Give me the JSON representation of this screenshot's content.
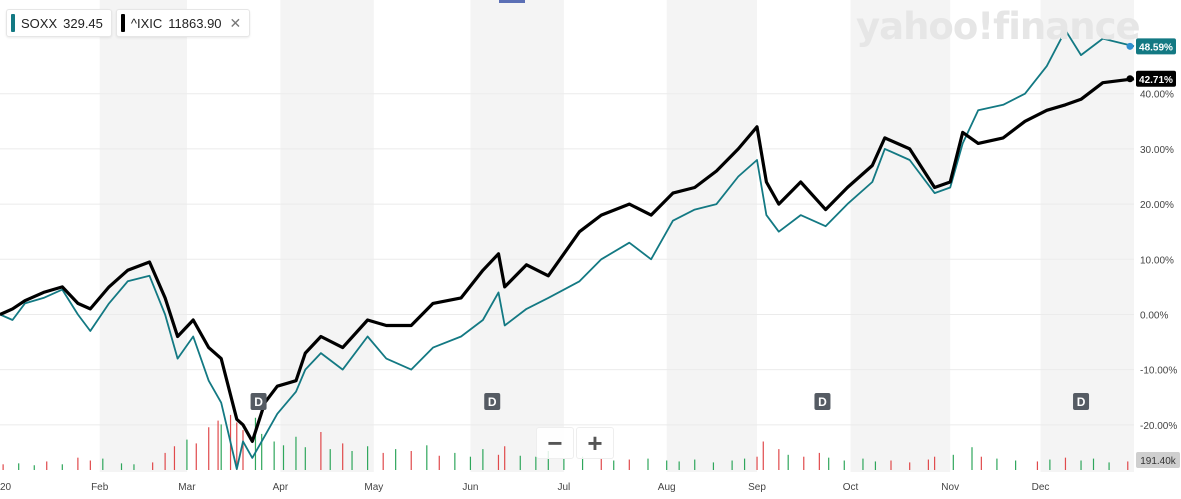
{
  "legend": [
    {
      "symbol": "SOXX",
      "value": "329.45",
      "color": "#137983"
    },
    {
      "symbol": "^IXIC",
      "value": "11863.90",
      "color": "#000000",
      "close": "✕"
    }
  ],
  "watermark": "yahoo!finance",
  "zoom": {
    "minus": "−",
    "plus": "+"
  },
  "price_labels": [
    {
      "text": "48.59%",
      "color": "#137983",
      "value": 48.59
    },
    {
      "text": "42.71%",
      "color": "#000000",
      "value": 42.71
    }
  ],
  "volume_label": "191.40k",
  "chart_data": {
    "type": "line",
    "x_start": "2020-01-02",
    "x_end": "2020-12-31",
    "ylim": [
      -30,
      53
    ],
    "yticks": [
      40,
      30,
      20,
      10,
      0,
      -10,
      -20
    ],
    "ytick_labels": [
      "40.00%",
      "30.00%",
      "20.00%",
      "10.00%",
      "0.00%",
      "-10.00%",
      "-20.00%"
    ],
    "xtick_labels": [
      "20",
      "Feb",
      "Mar",
      "Apr",
      "May",
      "Jun",
      "Jul",
      "Aug",
      "Sep",
      "Oct",
      "Nov",
      "Dec"
    ],
    "xtick_dates": [
      "2020-01-02",
      "2020-02-03",
      "2020-03-02",
      "2020-04-01",
      "2020-05-01",
      "2020-06-01",
      "2020-07-01",
      "2020-08-03",
      "2020-09-01",
      "2020-10-01",
      "2020-11-02",
      "2020-12-01"
    ],
    "dividend_markers": {
      "label": "D",
      "dates": [
        "2020-03-25",
        "2020-06-08",
        "2020-09-22",
        "2020-12-14"
      ]
    },
    "series": [
      {
        "name": "SOXX",
        "color": "#137983",
        "points": [
          [
            "2020-01-02",
            0
          ],
          [
            "2020-01-06",
            -1
          ],
          [
            "2020-01-10",
            2
          ],
          [
            "2020-01-16",
            3
          ],
          [
            "2020-01-22",
            4.5
          ],
          [
            "2020-01-27",
            0
          ],
          [
            "2020-01-31",
            -3
          ],
          [
            "2020-02-06",
            2
          ],
          [
            "2020-02-12",
            6
          ],
          [
            "2020-02-19",
            7
          ],
          [
            "2020-02-24",
            0
          ],
          [
            "2020-02-28",
            -8
          ],
          [
            "2020-03-04",
            -4
          ],
          [
            "2020-03-09",
            -12
          ],
          [
            "2020-03-13",
            -16
          ],
          [
            "2020-03-18",
            -28
          ],
          [
            "2020-03-20",
            -23
          ],
          [
            "2020-03-23",
            -26
          ],
          [
            "2020-03-27",
            -22
          ],
          [
            "2020-03-31",
            -18
          ],
          [
            "2020-04-06",
            -14
          ],
          [
            "2020-04-09",
            -10
          ],
          [
            "2020-04-14",
            -7
          ],
          [
            "2020-04-21",
            -10
          ],
          [
            "2020-04-29",
            -4
          ],
          [
            "2020-05-05",
            -8
          ],
          [
            "2020-05-13",
            -10
          ],
          [
            "2020-05-20",
            -6
          ],
          [
            "2020-05-29",
            -4
          ],
          [
            "2020-06-05",
            -1
          ],
          [
            "2020-06-10",
            4
          ],
          [
            "2020-06-12",
            -2
          ],
          [
            "2020-06-19",
            1
          ],
          [
            "2020-06-26",
            3
          ],
          [
            "2020-07-06",
            6
          ],
          [
            "2020-07-13",
            10
          ],
          [
            "2020-07-22",
            13
          ],
          [
            "2020-07-29",
            10
          ],
          [
            "2020-08-05",
            17
          ],
          [
            "2020-08-12",
            19
          ],
          [
            "2020-08-19",
            20
          ],
          [
            "2020-08-26",
            25
          ],
          [
            "2020-09-01",
            28
          ],
          [
            "2020-09-04",
            18
          ],
          [
            "2020-09-08",
            15
          ],
          [
            "2020-09-15",
            18
          ],
          [
            "2020-09-23",
            16
          ],
          [
            "2020-09-30",
            20
          ],
          [
            "2020-10-08",
            24
          ],
          [
            "2020-10-12",
            30
          ],
          [
            "2020-10-20",
            28
          ],
          [
            "2020-10-28",
            22
          ],
          [
            "2020-11-02",
            23
          ],
          [
            "2020-11-06",
            31
          ],
          [
            "2020-11-11",
            37
          ],
          [
            "2020-11-19",
            38
          ],
          [
            "2020-11-26",
            40
          ],
          [
            "2020-12-03",
            45
          ],
          [
            "2020-12-09",
            51.5
          ],
          [
            "2020-12-14",
            47
          ],
          [
            "2020-12-21",
            50
          ],
          [
            "2020-12-31",
            48.59
          ]
        ]
      },
      {
        "name": "^IXIC",
        "color": "#000000",
        "points": [
          [
            "2020-01-02",
            0
          ],
          [
            "2020-01-06",
            1
          ],
          [
            "2020-01-10",
            2.5
          ],
          [
            "2020-01-16",
            4
          ],
          [
            "2020-01-22",
            5
          ],
          [
            "2020-01-27",
            2
          ],
          [
            "2020-01-31",
            1
          ],
          [
            "2020-02-06",
            5
          ],
          [
            "2020-02-12",
            8
          ],
          [
            "2020-02-19",
            9.5
          ],
          [
            "2020-02-24",
            3
          ],
          [
            "2020-02-28",
            -4
          ],
          [
            "2020-03-04",
            -1
          ],
          [
            "2020-03-09",
            -6
          ],
          [
            "2020-03-13",
            -8
          ],
          [
            "2020-03-18",
            -19
          ],
          [
            "2020-03-20",
            -20
          ],
          [
            "2020-03-23",
            -23
          ],
          [
            "2020-03-27",
            -16
          ],
          [
            "2020-03-31",
            -13
          ],
          [
            "2020-04-06",
            -12
          ],
          [
            "2020-04-09",
            -7
          ],
          [
            "2020-04-14",
            -4
          ],
          [
            "2020-04-21",
            -6
          ],
          [
            "2020-04-29",
            -1
          ],
          [
            "2020-05-05",
            -2
          ],
          [
            "2020-05-13",
            -2
          ],
          [
            "2020-05-20",
            2
          ],
          [
            "2020-05-29",
            3
          ],
          [
            "2020-06-05",
            8
          ],
          [
            "2020-06-10",
            11
          ],
          [
            "2020-06-12",
            5
          ],
          [
            "2020-06-19",
            9
          ],
          [
            "2020-06-26",
            7
          ],
          [
            "2020-07-06",
            15
          ],
          [
            "2020-07-13",
            18
          ],
          [
            "2020-07-22",
            20
          ],
          [
            "2020-07-29",
            18
          ],
          [
            "2020-08-05",
            22
          ],
          [
            "2020-08-12",
            23
          ],
          [
            "2020-08-19",
            26
          ],
          [
            "2020-08-26",
            30
          ],
          [
            "2020-09-01",
            34
          ],
          [
            "2020-09-04",
            24
          ],
          [
            "2020-09-08",
            20
          ],
          [
            "2020-09-15",
            24
          ],
          [
            "2020-09-23",
            19
          ],
          [
            "2020-09-30",
            23
          ],
          [
            "2020-10-08",
            27
          ],
          [
            "2020-10-12",
            32
          ],
          [
            "2020-10-20",
            30
          ],
          [
            "2020-10-28",
            23
          ],
          [
            "2020-11-02",
            24
          ],
          [
            "2020-11-06",
            33
          ],
          [
            "2020-11-11",
            31
          ],
          [
            "2020-11-19",
            32
          ],
          [
            "2020-11-26",
            35
          ],
          [
            "2020-12-03",
            37
          ],
          [
            "2020-12-09",
            38
          ],
          [
            "2020-12-14",
            39
          ],
          [
            "2020-12-21",
            42
          ],
          [
            "2020-12-31",
            42.71
          ]
        ]
      }
    ],
    "volume": {
      "ylim": [
        0,
        100
      ],
      "bars": [
        {
          "date": "2020-01-03",
          "value": 6,
          "up": false
        },
        {
          "date": "2020-01-08",
          "value": 7,
          "up": true
        },
        {
          "date": "2020-01-13",
          "value": 5,
          "up": true
        },
        {
          "date": "2020-01-17",
          "value": 9,
          "up": false
        },
        {
          "date": "2020-01-22",
          "value": 6,
          "up": true
        },
        {
          "date": "2020-01-27",
          "value": 13,
          "up": false
        },
        {
          "date": "2020-01-31",
          "value": 10,
          "up": false
        },
        {
          "date": "2020-02-04",
          "value": 12,
          "up": true
        },
        {
          "date": "2020-02-10",
          "value": 7,
          "up": true
        },
        {
          "date": "2020-02-14",
          "value": 6,
          "up": true
        },
        {
          "date": "2020-02-20",
          "value": 8,
          "up": false
        },
        {
          "date": "2020-02-24",
          "value": 18,
          "up": false
        },
        {
          "date": "2020-02-27",
          "value": 25,
          "up": false
        },
        {
          "date": "2020-03-02",
          "value": 32,
          "up": true
        },
        {
          "date": "2020-03-05",
          "value": 28,
          "up": false
        },
        {
          "date": "2020-03-09",
          "value": 45,
          "up": false
        },
        {
          "date": "2020-03-12",
          "value": 52,
          "up": false
        },
        {
          "date": "2020-03-13",
          "value": 48,
          "up": true
        },
        {
          "date": "2020-03-16",
          "value": 58,
          "up": false
        },
        {
          "date": "2020-03-18",
          "value": 50,
          "up": false
        },
        {
          "date": "2020-03-20",
          "value": 42,
          "up": false
        },
        {
          "date": "2020-03-24",
          "value": 55,
          "up": true
        },
        {
          "date": "2020-03-26",
          "value": 38,
          "up": true
        },
        {
          "date": "2020-03-30",
          "value": 30,
          "up": true
        },
        {
          "date": "2020-04-02",
          "value": 26,
          "up": true
        },
        {
          "date": "2020-04-06",
          "value": 35,
          "up": true
        },
        {
          "date": "2020-04-09",
          "value": 24,
          "up": true
        },
        {
          "date": "2020-04-14",
          "value": 40,
          "up": false
        },
        {
          "date": "2020-04-17",
          "value": 22,
          "up": true
        },
        {
          "date": "2020-04-21",
          "value": 28,
          "up": false
        },
        {
          "date": "2020-04-24",
          "value": 20,
          "up": true
        },
        {
          "date": "2020-04-29",
          "value": 25,
          "up": true
        },
        {
          "date": "2020-05-04",
          "value": 18,
          "up": false
        },
        {
          "date": "2020-05-08",
          "value": 22,
          "up": true
        },
        {
          "date": "2020-05-13",
          "value": 20,
          "up": false
        },
        {
          "date": "2020-05-18",
          "value": 26,
          "up": true
        },
        {
          "date": "2020-05-22",
          "value": 15,
          "up": false
        },
        {
          "date": "2020-05-27",
          "value": 18,
          "up": true
        },
        {
          "date": "2020-06-01",
          "value": 14,
          "up": true
        },
        {
          "date": "2020-06-05",
          "value": 22,
          "up": true
        },
        {
          "date": "2020-06-10",
          "value": 16,
          "up": false
        },
        {
          "date": "2020-06-12",
          "value": 25,
          "up": false
        },
        {
          "date": "2020-06-17",
          "value": 15,
          "up": true
        },
        {
          "date": "2020-06-22",
          "value": 14,
          "up": true
        },
        {
          "date": "2020-06-26",
          "value": 20,
          "up": true
        },
        {
          "date": "2020-07-01",
          "value": 12,
          "up": true
        },
        {
          "date": "2020-07-07",
          "value": 14,
          "up": true
        },
        {
          "date": "2020-07-13",
          "value": 12,
          "up": false
        },
        {
          "date": "2020-07-17",
          "value": 10,
          "up": true
        },
        {
          "date": "2020-07-22",
          "value": 11,
          "up": false
        },
        {
          "date": "2020-07-28",
          "value": 12,
          "up": true
        },
        {
          "date": "2020-08-03",
          "value": 10,
          "up": true
        },
        {
          "date": "2020-08-07",
          "value": 9,
          "up": true
        },
        {
          "date": "2020-08-12",
          "value": 11,
          "up": true
        },
        {
          "date": "2020-08-18",
          "value": 8,
          "up": true
        },
        {
          "date": "2020-08-24",
          "value": 10,
          "up": true
        },
        {
          "date": "2020-08-28",
          "value": 12,
          "up": true
        },
        {
          "date": "2020-09-01",
          "value": 14,
          "up": false
        },
        {
          "date": "2020-09-03",
          "value": 30,
          "up": false
        },
        {
          "date": "2020-09-08",
          "value": 22,
          "up": false
        },
        {
          "date": "2020-09-11",
          "value": 16,
          "up": true
        },
        {
          "date": "2020-09-16",
          "value": 14,
          "up": false
        },
        {
          "date": "2020-09-21",
          "value": 18,
          "up": false
        },
        {
          "date": "2020-09-24",
          "value": 13,
          "up": true
        },
        {
          "date": "2020-09-29",
          "value": 10,
          "up": true
        },
        {
          "date": "2020-10-05",
          "value": 12,
          "up": true
        },
        {
          "date": "2020-10-09",
          "value": 9,
          "up": true
        },
        {
          "date": "2020-10-14",
          "value": 10,
          "up": false
        },
        {
          "date": "2020-10-20",
          "value": 8,
          "up": false
        },
        {
          "date": "2020-10-26",
          "value": 11,
          "up": false
        },
        {
          "date": "2020-10-28",
          "value": 14,
          "up": false
        },
        {
          "date": "2020-11-03",
          "value": 16,
          "up": true
        },
        {
          "date": "2020-11-09",
          "value": 24,
          "up": true
        },
        {
          "date": "2020-11-12",
          "value": 14,
          "up": false
        },
        {
          "date": "2020-11-17",
          "value": 12,
          "up": true
        },
        {
          "date": "2020-11-23",
          "value": 10,
          "up": true
        },
        {
          "date": "2020-11-30",
          "value": 9,
          "up": false
        },
        {
          "date": "2020-12-04",
          "value": 11,
          "up": true
        },
        {
          "date": "2020-12-09",
          "value": 13,
          "up": false
        },
        {
          "date": "2020-12-14",
          "value": 10,
          "up": true
        },
        {
          "date": "2020-12-18",
          "value": 12,
          "up": true
        },
        {
          "date": "2020-12-23",
          "value": 8,
          "up": true
        },
        {
          "date": "2020-12-29",
          "value": 9,
          "up": false
        }
      ],
      "colors": {
        "up": "#2ea65b",
        "down": "#e0494b"
      }
    }
  }
}
